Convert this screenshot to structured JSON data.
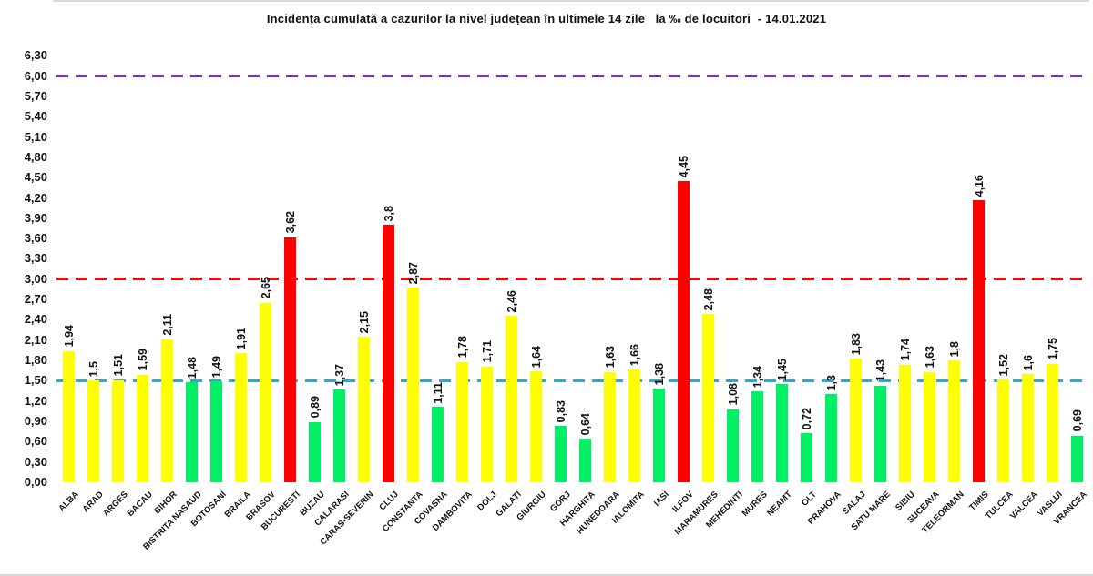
{
  "chart_data": {
    "type": "bar",
    "title": "Incidența cumulată a cazurilor la nivel județean în ultimele 14 zile   la ‰ de locuitori  - 14.01.2021",
    "xlabel": "",
    "ylabel": "",
    "ylim": [
      0,
      6.3
    ],
    "y_tick_step": 0.3,
    "y_tick_labels": [
      "6,30",
      "6,00",
      "5,70",
      "5,40",
      "5,10",
      "4,80",
      "4,50",
      "4,20",
      "3,90",
      "3,60",
      "3,30",
      "3,00",
      "2,70",
      "2,40",
      "2,10",
      "1,80",
      "1,50",
      "1,20",
      "0,90",
      "0,60",
      "0,30",
      "0,00"
    ],
    "grid": false,
    "legend": "none",
    "thresholds": [
      {
        "name": "limit-1-50",
        "value": 1.5,
        "color": "#2BA7DF",
        "style": "dashed"
      },
      {
        "name": "limit-3-00",
        "value": 3.0,
        "color": "#FF0000",
        "style": "dashed"
      },
      {
        "name": "limit-6-00",
        "value": 6.0,
        "color": "#71399B",
        "style": "dashed"
      }
    ],
    "palette": {
      "yellow": "#FFFF00",
      "green": "#00EF64",
      "red": "#FF0000"
    },
    "categories": [
      "ALBA",
      "ARAD",
      "ARGES",
      "BACAU",
      "BIHOR",
      "BISTRITA NASAUD",
      "BOTOSANI",
      "BRAILA",
      "BRASOV",
      "BUCURESTI",
      "BUZAU",
      "CALARASI",
      "CARAS-SEVERIN",
      "CLUJ",
      "CONSTANTA",
      "COVASNA",
      "DAMBOVITA",
      "DOLJ",
      "GALATI",
      "GIURGIU",
      "GORJ",
      "HARGHITA",
      "HUNEDOARA",
      "IALOMITA",
      "IASI",
      "ILFOV",
      "MARAMURES",
      "MEHEDINTI",
      "MURES",
      "NEAMT",
      "OLT",
      "PRAHOVA",
      "SALAJ",
      "SATU MARE",
      "SIBIU",
      "SUCEAVA",
      "TELEORMAN",
      "TIMIS",
      "TULCEA",
      "VALCEA",
      "VASLUI",
      "VRANCEA"
    ],
    "values": [
      1.94,
      1.5,
      1.51,
      1.59,
      2.11,
      1.48,
      1.49,
      1.91,
      2.65,
      3.62,
      0.89,
      1.37,
      2.15,
      3.8,
      2.87,
      1.11,
      1.78,
      1.71,
      2.46,
      1.64,
      0.83,
      0.64,
      1.63,
      1.66,
      1.38,
      4.45,
      2.48,
      1.08,
      1.34,
      1.45,
      0.72,
      1.3,
      1.83,
      1.43,
      1.74,
      1.63,
      1.8,
      4.16,
      1.52,
      1.6,
      1.75,
      0.69
    ],
    "value_labels": [
      "1,94",
      "1,5",
      "1,51",
      "1,59",
      "2,11",
      "1,48",
      "1,49",
      "1,91",
      "2,65",
      "3,62",
      "0,89",
      "1,37",
      "2,15",
      "3,8",
      "2,87",
      "1,11",
      "1,78",
      "1,71",
      "2,46",
      "1,64",
      "0,83",
      "0,64",
      "1,63",
      "1,66",
      "1,38",
      "4,45",
      "2,48",
      "1,08",
      "1,34",
      "1,45",
      "0,72",
      "1,3",
      "1,83",
      "1,43",
      "1,74",
      "1,63",
      "1,8",
      "4,16",
      "1,52",
      "1,6",
      "1,75",
      "0,69"
    ],
    "colors": [
      "yellow",
      "yellow",
      "yellow",
      "yellow",
      "yellow",
      "green",
      "green",
      "yellow",
      "yellow",
      "red",
      "green",
      "green",
      "yellow",
      "red",
      "yellow",
      "green",
      "yellow",
      "yellow",
      "yellow",
      "yellow",
      "green",
      "green",
      "yellow",
      "yellow",
      "green",
      "red",
      "yellow",
      "green",
      "green",
      "green",
      "green",
      "green",
      "yellow",
      "green",
      "yellow",
      "yellow",
      "yellow",
      "red",
      "yellow",
      "yellow",
      "yellow",
      "green"
    ]
  }
}
